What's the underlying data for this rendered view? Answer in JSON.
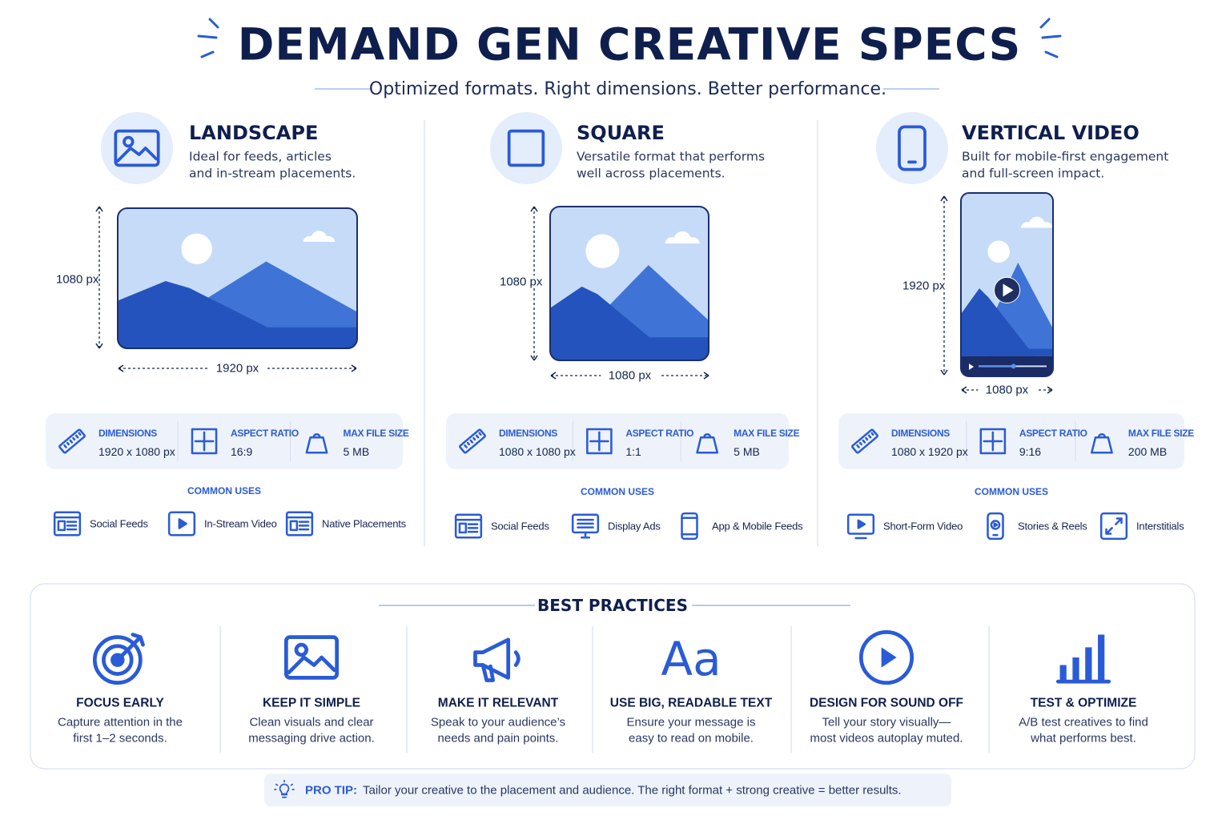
{
  "header": {
    "title": "DEMAND GEN CREATIVE SPECS",
    "subtitle": "Optimized formats. Right dimensions. Better performance."
  },
  "formats": [
    {
      "name": "LANDSCAPE",
      "description": [
        "Ideal for feeds, articles",
        "and in-stream placements."
      ],
      "height_label": "1080 px",
      "width_label": "1920 px",
      "specs": [
        {
          "label": "DIMENSIONS",
          "value": "1920 x 1080 px"
        },
        {
          "label": "ASPECT RATIO",
          "value": "16:9"
        },
        {
          "label": "MAX FILE SIZE",
          "value": "5 MB"
        }
      ],
      "uses_title": "COMMON USES",
      "uses": [
        "Social Feeds",
        "In-Stream Video",
        "Native Placements"
      ]
    },
    {
      "name": "SQUARE",
      "description": [
        "Versatile format that performs",
        "well across placements."
      ],
      "height_label": "1080 px",
      "width_label": "1080 px",
      "specs": [
        {
          "label": "DIMENSIONS",
          "value": "1080 x 1080 px"
        },
        {
          "label": "ASPECT RATIO",
          "value": "1:1"
        },
        {
          "label": "MAX FILE SIZE",
          "value": "5 MB"
        }
      ],
      "uses_title": "COMMON USES",
      "uses": [
        "Social Feeds",
        "Display Ads",
        "App & Mobile Feeds"
      ]
    },
    {
      "name": "VERTICAL VIDEO",
      "description": [
        "Built for mobile-first engagement",
        "and full-screen impact."
      ],
      "height_label": "1920 px",
      "width_label": "1080 px",
      "specs": [
        {
          "label": "DIMENSIONS",
          "value": "1080 x 1920 px"
        },
        {
          "label": "ASPECT RATIO",
          "value": "9:16"
        },
        {
          "label": "MAX FILE SIZE",
          "value": "200 MB"
        }
      ],
      "uses_title": "COMMON USES",
      "uses": [
        "Short-Form Video",
        "Stories & Reels",
        "Interstitials"
      ]
    }
  ],
  "best_practices": {
    "title": "BEST PRACTICES",
    "items": [
      {
        "title": "FOCUS EARLY",
        "text": [
          "Capture attention in the",
          "first 1–2 seconds."
        ]
      },
      {
        "title": "KEEP IT SIMPLE",
        "text": [
          "Clean visuals and clear",
          "messaging drive action."
        ]
      },
      {
        "title": "MAKE IT RELEVANT",
        "text": [
          "Speak to your audience’s",
          "needs and pain points."
        ]
      },
      {
        "title": "USE BIG, READABLE TEXT",
        "icon": "Aa",
        "text": [
          "Ensure your message is",
          "easy to read on mobile."
        ]
      },
      {
        "title": "DESIGN FOR SOUND OFF",
        "text": [
          "Tell your story visually—",
          "most videos autoplay muted."
        ]
      },
      {
        "title": "TEST & OPTIMIZE",
        "text": [
          "A/B test creatives to find",
          "what performs best."
        ]
      }
    ]
  },
  "pro_tip": {
    "label": "PRO TIP:",
    "text": "Tailor your creative to the placement and audience. The right format + strong creative = better results."
  }
}
